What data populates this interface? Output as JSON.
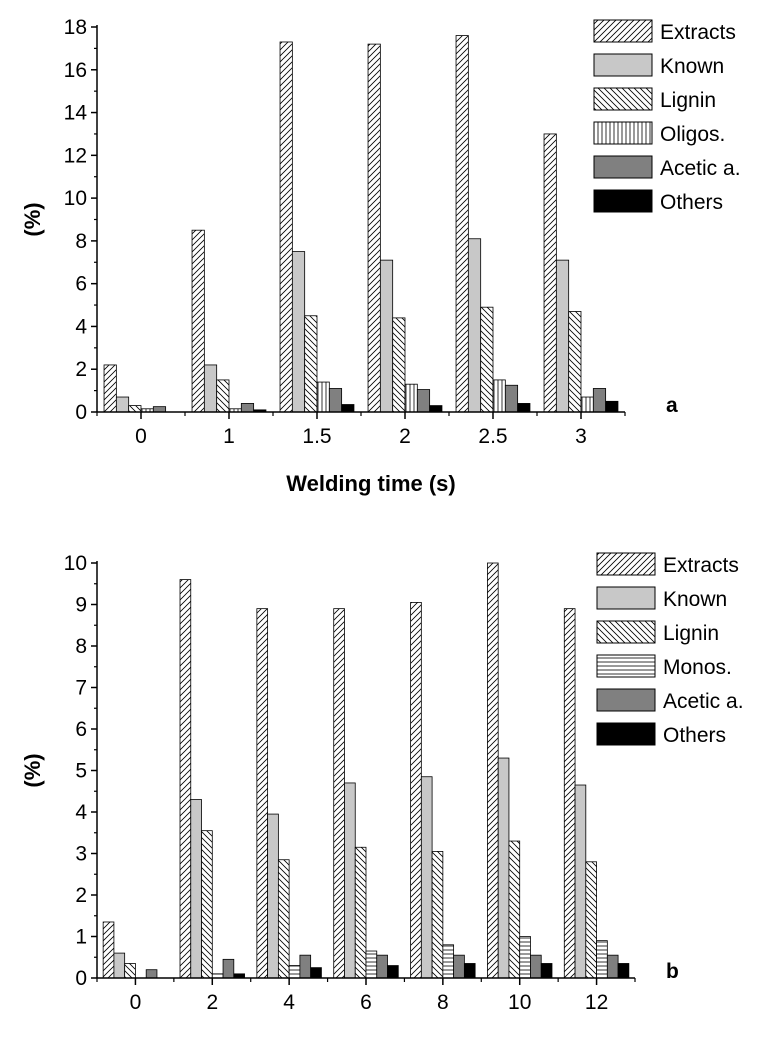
{
  "chart_data": [
    {
      "type": "bar",
      "panel_label": "a",
      "xlabel": "Welding time (s)",
      "ylabel": "(%)",
      "ylim": [
        0,
        18
      ],
      "yticks": [
        0,
        2,
        4,
        6,
        8,
        10,
        12,
        14,
        16,
        18
      ],
      "categories": [
        "0",
        "1",
        "1.5",
        "2",
        "2.5",
        "3"
      ],
      "legend_position": "top-right",
      "series": [
        {
          "name": "Extracts",
          "pattern": "diag-right",
          "values": [
            2.2,
            8.5,
            17.3,
            17.2,
            17.6,
            13.0
          ]
        },
        {
          "name": "Known",
          "pattern": "light-gray",
          "values": [
            0.7,
            2.2,
            7.5,
            7.1,
            8.1,
            7.1
          ]
        },
        {
          "name": "Lignin",
          "pattern": "diag-left",
          "values": [
            0.3,
            1.5,
            4.5,
            4.4,
            4.9,
            4.7
          ]
        },
        {
          "name": "Oligos.",
          "pattern": "vertical",
          "values": [
            0.15,
            0.15,
            1.4,
            1.3,
            1.5,
            0.7
          ]
        },
        {
          "name": "Acetic a.",
          "pattern": "dark-gray",
          "values": [
            0.25,
            0.4,
            1.1,
            1.05,
            1.25,
            1.1
          ]
        },
        {
          "name": "Others",
          "pattern": "black",
          "values": [
            0.0,
            0.1,
            0.35,
            0.3,
            0.4,
            0.5
          ]
        }
      ]
    },
    {
      "type": "bar",
      "panel_label": "b",
      "xlabel": "Welding time (s)",
      "ylabel": "(%)",
      "ylim": [
        0,
        10
      ],
      "yticks": [
        0,
        1,
        2,
        3,
        4,
        5,
        6,
        7,
        8,
        9,
        10
      ],
      "categories": [
        "0",
        "2",
        "4",
        "6",
        "8",
        "10",
        "12"
      ],
      "legend_position": "top-right",
      "series": [
        {
          "name": "Extracts",
          "pattern": "diag-right",
          "values": [
            1.35,
            9.6,
            8.9,
            8.9,
            9.05,
            10.0,
            8.9
          ]
        },
        {
          "name": "Known",
          "pattern": "light-gray",
          "values": [
            0.6,
            4.3,
            3.95,
            4.7,
            4.85,
            5.3,
            4.65
          ]
        },
        {
          "name": "Lignin",
          "pattern": "diag-left",
          "values": [
            0.35,
            3.55,
            2.85,
            3.15,
            3.05,
            3.3,
            2.8
          ]
        },
        {
          "name": "Monos.",
          "pattern": "horizontal",
          "values": [
            0.0,
            0.1,
            0.3,
            0.65,
            0.8,
            1.0,
            0.9
          ]
        },
        {
          "name": "Acetic a.",
          "pattern": "dark-gray",
          "values": [
            0.2,
            0.45,
            0.55,
            0.55,
            0.55,
            0.55,
            0.55
          ]
        },
        {
          "name": "Others",
          "pattern": "black",
          "values": [
            0.0,
            0.1,
            0.25,
            0.3,
            0.35,
            0.35,
            0.35
          ]
        }
      ]
    }
  ]
}
